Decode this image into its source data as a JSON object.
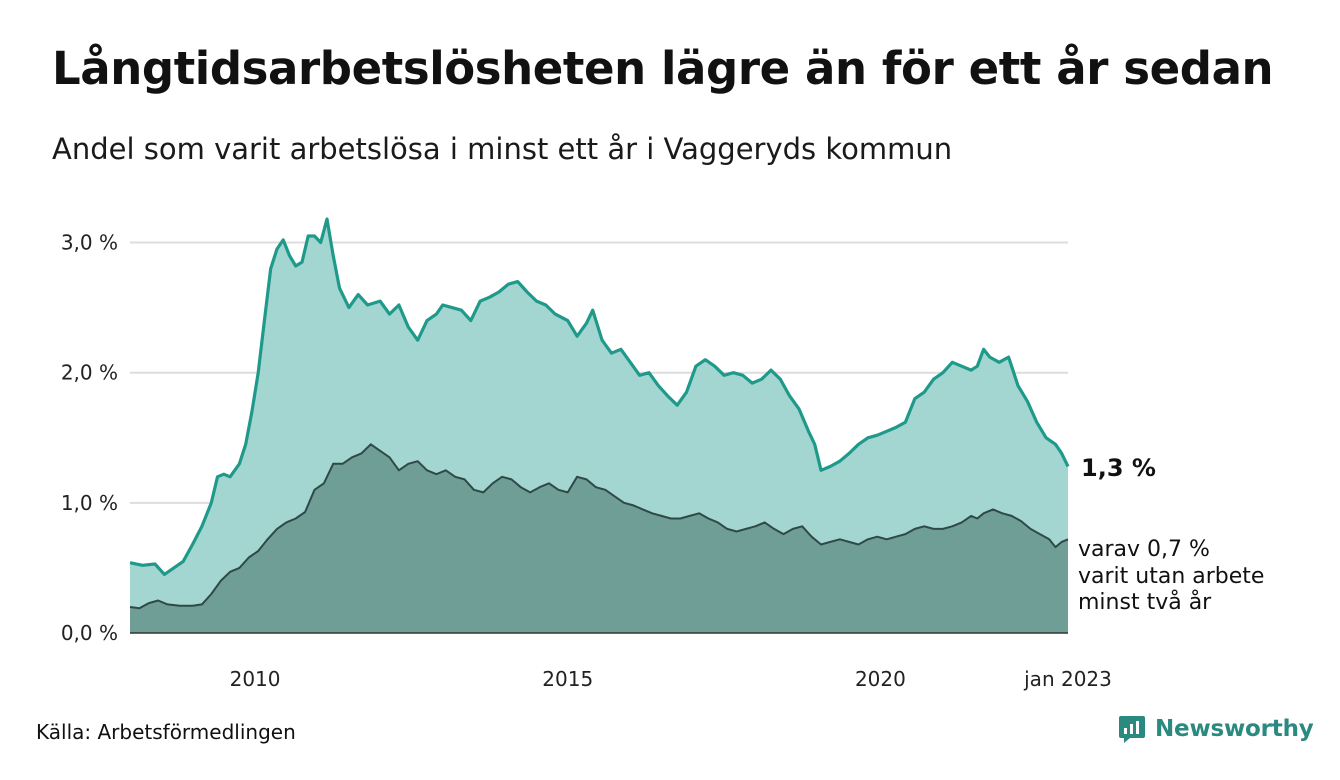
{
  "title": "Långtidsarbetslösheten lägre än för ett år sedan",
  "subtitle": "Andel som varit arbetslösa i minst ett år i Vaggeryds kommun",
  "source": "Källa: Arbetsförmedlingen",
  "brand": "Newsworthy",
  "colors": {
    "area_total": "#a3d5d1",
    "line_total": "#1f9a8a",
    "area_sub": "#6f9e97",
    "line_sub": "#2f4a46",
    "gridline": "#dddddd",
    "brand": "#2a8a80"
  },
  "chart_data": {
    "type": "area",
    "y_tick_labels": [
      "0,0 %",
      "1,0 %",
      "2,0 %",
      "3,0 %"
    ],
    "y_ticks": [
      0,
      1,
      2,
      3
    ],
    "ylim": [
      0,
      3.25
    ],
    "grid": true,
    "x_tick_labels": [
      "2010",
      "2015",
      "2020",
      "jan 2023"
    ],
    "x_ticks": [
      2010.0,
      2015.0,
      2020.0,
      2023.0
    ],
    "xlim": [
      2008.0,
      2023.0
    ],
    "series": [
      {
        "key": "total",
        "end_label": "1,3 %",
        "points": [
          [
            2008.0,
            0.54
          ],
          [
            2008.2,
            0.52
          ],
          [
            2008.4,
            0.53
          ],
          [
            2008.55,
            0.45
          ],
          [
            2008.7,
            0.5
          ],
          [
            2008.85,
            0.55
          ],
          [
            2009.0,
            0.68
          ],
          [
            2009.15,
            0.82
          ],
          [
            2009.3,
            1.0
          ],
          [
            2009.4,
            1.2
          ],
          [
            2009.5,
            1.22
          ],
          [
            2009.6,
            1.2
          ],
          [
            2009.75,
            1.3
          ],
          [
            2009.85,
            1.45
          ],
          [
            2009.95,
            1.7
          ],
          [
            2010.05,
            2.0
          ],
          [
            2010.15,
            2.4
          ],
          [
            2010.25,
            2.8
          ],
          [
            2010.35,
            2.95
          ],
          [
            2010.45,
            3.02
          ],
          [
            2010.55,
            2.9
          ],
          [
            2010.65,
            2.82
          ],
          [
            2010.75,
            2.85
          ],
          [
            2010.85,
            3.05
          ],
          [
            2010.95,
            3.05
          ],
          [
            2011.05,
            3.0
          ],
          [
            2011.15,
            3.18
          ],
          [
            2011.25,
            2.9
          ],
          [
            2011.35,
            2.65
          ],
          [
            2011.5,
            2.5
          ],
          [
            2011.65,
            2.6
          ],
          [
            2011.8,
            2.52
          ],
          [
            2012.0,
            2.55
          ],
          [
            2012.15,
            2.45
          ],
          [
            2012.3,
            2.52
          ],
          [
            2012.45,
            2.35
          ],
          [
            2012.6,
            2.25
          ],
          [
            2012.75,
            2.4
          ],
          [
            2012.9,
            2.45
          ],
          [
            2013.0,
            2.52
          ],
          [
            2013.15,
            2.5
          ],
          [
            2013.3,
            2.48
          ],
          [
            2013.45,
            2.4
          ],
          [
            2013.6,
            2.55
          ],
          [
            2013.75,
            2.58
          ],
          [
            2013.9,
            2.62
          ],
          [
            2014.05,
            2.68
          ],
          [
            2014.2,
            2.7
          ],
          [
            2014.35,
            2.62
          ],
          [
            2014.5,
            2.55
          ],
          [
            2014.65,
            2.52
          ],
          [
            2014.8,
            2.45
          ],
          [
            2015.0,
            2.4
          ],
          [
            2015.15,
            2.28
          ],
          [
            2015.3,
            2.38
          ],
          [
            2015.4,
            2.48
          ],
          [
            2015.55,
            2.25
          ],
          [
            2015.7,
            2.15
          ],
          [
            2015.85,
            2.18
          ],
          [
            2016.0,
            2.08
          ],
          [
            2016.15,
            1.98
          ],
          [
            2016.3,
            2.0
          ],
          [
            2016.45,
            1.9
          ],
          [
            2016.6,
            1.82
          ],
          [
            2016.75,
            1.75
          ],
          [
            2016.9,
            1.85
          ],
          [
            2017.05,
            2.05
          ],
          [
            2017.2,
            2.1
          ],
          [
            2017.35,
            2.05
          ],
          [
            2017.5,
            1.98
          ],
          [
            2017.65,
            2.0
          ],
          [
            2017.8,
            1.98
          ],
          [
            2017.95,
            1.92
          ],
          [
            2018.1,
            1.95
          ],
          [
            2018.25,
            2.02
          ],
          [
            2018.4,
            1.95
          ],
          [
            2018.55,
            1.82
          ],
          [
            2018.7,
            1.72
          ],
          [
            2018.85,
            1.55
          ],
          [
            2018.95,
            1.45
          ],
          [
            2019.05,
            1.25
          ],
          [
            2019.2,
            1.28
          ],
          [
            2019.35,
            1.32
          ],
          [
            2019.5,
            1.38
          ],
          [
            2019.65,
            1.45
          ],
          [
            2019.8,
            1.5
          ],
          [
            2019.95,
            1.52
          ],
          [
            2020.1,
            1.55
          ],
          [
            2020.25,
            1.58
          ],
          [
            2020.4,
            1.62
          ],
          [
            2020.55,
            1.8
          ],
          [
            2020.7,
            1.85
          ],
          [
            2020.85,
            1.95
          ],
          [
            2021.0,
            2.0
          ],
          [
            2021.15,
            2.08
          ],
          [
            2021.3,
            2.05
          ],
          [
            2021.45,
            2.02
          ],
          [
            2021.55,
            2.05
          ],
          [
            2021.65,
            2.18
          ],
          [
            2021.75,
            2.12
          ],
          [
            2021.9,
            2.08
          ],
          [
            2022.05,
            2.12
          ],
          [
            2022.2,
            1.9
          ],
          [
            2022.35,
            1.78
          ],
          [
            2022.5,
            1.62
          ],
          [
            2022.65,
            1.5
          ],
          [
            2022.8,
            1.45
          ],
          [
            2022.9,
            1.38
          ],
          [
            2023.0,
            1.28
          ]
        ]
      },
      {
        "key": "over_two_years",
        "end_label": "varav 0,7 % varit utan arbete minst två år",
        "end_label_lines": [
          "varav 0,7 %",
          "varit utan arbete",
          "minst två år"
        ],
        "points": [
          [
            2008.0,
            0.2
          ],
          [
            2008.15,
            0.19
          ],
          [
            2008.3,
            0.23
          ],
          [
            2008.45,
            0.25
          ],
          [
            2008.6,
            0.22
          ],
          [
            2008.8,
            0.21
          ],
          [
            2009.0,
            0.21
          ],
          [
            2009.15,
            0.22
          ],
          [
            2009.3,
            0.3
          ],
          [
            2009.45,
            0.4
          ],
          [
            2009.6,
            0.47
          ],
          [
            2009.75,
            0.5
          ],
          [
            2009.9,
            0.58
          ],
          [
            2010.05,
            0.63
          ],
          [
            2010.2,
            0.72
          ],
          [
            2010.35,
            0.8
          ],
          [
            2010.5,
            0.85
          ],
          [
            2010.65,
            0.88
          ],
          [
            2010.8,
            0.93
          ],
          [
            2010.95,
            1.1
          ],
          [
            2011.1,
            1.15
          ],
          [
            2011.25,
            1.3
          ],
          [
            2011.4,
            1.3
          ],
          [
            2011.55,
            1.35
          ],
          [
            2011.7,
            1.38
          ],
          [
            2011.85,
            1.45
          ],
          [
            2012.0,
            1.4
          ],
          [
            2012.15,
            1.35
          ],
          [
            2012.3,
            1.25
          ],
          [
            2012.45,
            1.3
          ],
          [
            2012.6,
            1.32
          ],
          [
            2012.75,
            1.25
          ],
          [
            2012.9,
            1.22
          ],
          [
            2013.05,
            1.25
          ],
          [
            2013.2,
            1.2
          ],
          [
            2013.35,
            1.18
          ],
          [
            2013.5,
            1.1
          ],
          [
            2013.65,
            1.08
          ],
          [
            2013.8,
            1.15
          ],
          [
            2013.95,
            1.2
          ],
          [
            2014.1,
            1.18
          ],
          [
            2014.25,
            1.12
          ],
          [
            2014.4,
            1.08
          ],
          [
            2014.55,
            1.12
          ],
          [
            2014.7,
            1.15
          ],
          [
            2014.85,
            1.1
          ],
          [
            2015.0,
            1.08
          ],
          [
            2015.15,
            1.2
          ],
          [
            2015.3,
            1.18
          ],
          [
            2015.45,
            1.12
          ],
          [
            2015.6,
            1.1
          ],
          [
            2015.75,
            1.05
          ],
          [
            2015.9,
            1.0
          ],
          [
            2016.05,
            0.98
          ],
          [
            2016.2,
            0.95
          ],
          [
            2016.35,
            0.92
          ],
          [
            2016.5,
            0.9
          ],
          [
            2016.65,
            0.88
          ],
          [
            2016.8,
            0.88
          ],
          [
            2016.95,
            0.9
          ],
          [
            2017.1,
            0.92
          ],
          [
            2017.25,
            0.88
          ],
          [
            2017.4,
            0.85
          ],
          [
            2017.55,
            0.8
          ],
          [
            2017.7,
            0.78
          ],
          [
            2017.85,
            0.8
          ],
          [
            2018.0,
            0.82
          ],
          [
            2018.15,
            0.85
          ],
          [
            2018.3,
            0.8
          ],
          [
            2018.45,
            0.76
          ],
          [
            2018.6,
            0.8
          ],
          [
            2018.75,
            0.82
          ],
          [
            2018.9,
            0.74
          ],
          [
            2019.05,
            0.68
          ],
          [
            2019.2,
            0.7
          ],
          [
            2019.35,
            0.72
          ],
          [
            2019.5,
            0.7
          ],
          [
            2019.65,
            0.68
          ],
          [
            2019.8,
            0.72
          ],
          [
            2019.95,
            0.74
          ],
          [
            2020.1,
            0.72
          ],
          [
            2020.25,
            0.74
          ],
          [
            2020.4,
            0.76
          ],
          [
            2020.55,
            0.8
          ],
          [
            2020.7,
            0.82
          ],
          [
            2020.85,
            0.8
          ],
          [
            2021.0,
            0.8
          ],
          [
            2021.15,
            0.82
          ],
          [
            2021.3,
            0.85
          ],
          [
            2021.45,
            0.9
          ],
          [
            2021.55,
            0.88
          ],
          [
            2021.65,
            0.92
          ],
          [
            2021.8,
            0.95
          ],
          [
            2021.95,
            0.92
          ],
          [
            2022.1,
            0.9
          ],
          [
            2022.25,
            0.86
          ],
          [
            2022.4,
            0.8
          ],
          [
            2022.55,
            0.76
          ],
          [
            2022.7,
            0.72
          ],
          [
            2022.8,
            0.66
          ],
          [
            2022.9,
            0.7
          ],
          [
            2023.0,
            0.72
          ]
        ]
      }
    ]
  }
}
